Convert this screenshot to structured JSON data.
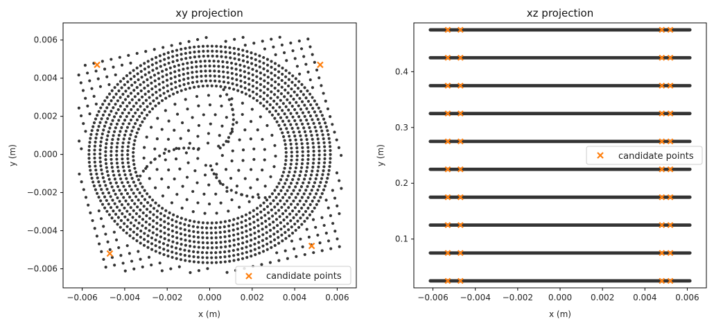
{
  "colors": {
    "points": "#333333",
    "candidates": "#ff7f0e",
    "axis": "#000000",
    "legend_border": "#cccccc"
  },
  "chart_data": [
    {
      "type": "scatter",
      "title": "xy projection",
      "xlabel": "x (m)",
      "ylabel": "y (m)",
      "xlim": [
        -0.0069,
        0.0069
      ],
      "ylim": [
        -0.007,
        0.0069
      ],
      "xticks": [
        -0.006,
        -0.004,
        -0.002,
        0.0,
        0.002,
        0.004,
        0.006
      ],
      "xtick_labels": [
        "−0.006",
        "−0.004",
        "−0.002",
        "0.000",
        "0.002",
        "0.004",
        "0.006"
      ],
      "yticks": [
        -0.006,
        -0.004,
        -0.002,
        0.0,
        0.002,
        0.004,
        0.006
      ],
      "ytick_labels": [
        "−0.006",
        "−0.004",
        "−0.002",
        "0.000",
        "0.002",
        "0.004",
        "0.006"
      ],
      "legend": {
        "label": "candidate points",
        "loc": "lower right"
      },
      "point_cloud": {
        "description": "dense ring-shaped distribution of mesh points",
        "ring_inner_radius": 0.0036,
        "ring_outer_radius": 0.0057,
        "outer_square_half_width": 0.0062,
        "core_radius": 0.0035
      },
      "candidate_points": [
        {
          "x": -0.0053,
          "y": 0.0047
        },
        {
          "x": 0.0052,
          "y": 0.0047
        },
        {
          "x": -0.0047,
          "y": -0.0052
        },
        {
          "x": 0.0048,
          "y": -0.0048
        }
      ]
    },
    {
      "type": "scatter",
      "title": "xz projection",
      "xlabel": "x (m)",
      "ylabel": "y (m)",
      "xlim": [
        -0.0069,
        0.0069
      ],
      "ylim": [
        0.0125,
        0.4875
      ],
      "xticks": [
        -0.006,
        -0.004,
        -0.002,
        0.0,
        0.002,
        0.004,
        0.006
      ],
      "xtick_labels": [
        "−0.006",
        "−0.004",
        "−0.002",
        "0.000",
        "0.002",
        "0.004",
        "0.006"
      ],
      "yticks": [
        0.1,
        0.2,
        0.3,
        0.4
      ],
      "ytick_labels": [
        "0.1",
        "0.2",
        "0.3",
        "0.4"
      ],
      "legend": {
        "label": "candidate points",
        "loc": "center right"
      },
      "layers_z": [
        0.025,
        0.075,
        0.125,
        0.175,
        0.225,
        0.275,
        0.325,
        0.375,
        0.425,
        0.475
      ],
      "point_cloud_x_range": [
        -0.0062,
        0.0062
      ],
      "candidate_x": [
        -0.0053,
        -0.0047,
        0.0048,
        0.0052
      ]
    }
  ]
}
